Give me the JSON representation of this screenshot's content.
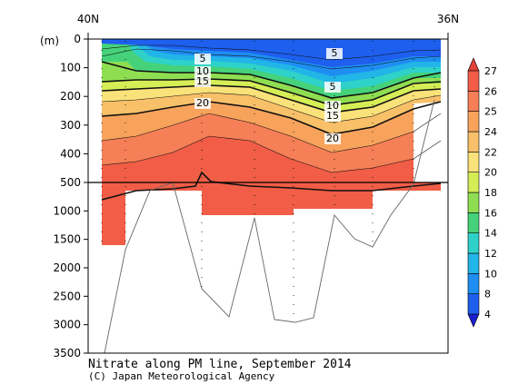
{
  "chart_data": {
    "type": "heatmap",
    "title": "Nitrate along PM line, September 2014",
    "credit": "(C) Japan Meteorological Agency",
    "x_labels": [
      "40N",
      "36N"
    ],
    "y_unit": "(m)",
    "y_ticks_upper": [
      0,
      100,
      200,
      300,
      400,
      500
    ],
    "y_ticks_lower": [
      1000,
      1500,
      2000,
      2500,
      3000,
      3500
    ],
    "ylim_upper": [
      0,
      500
    ],
    "ylim_lower": [
      500,
      3500
    ],
    "colorbar": {
      "levels": [
        4,
        8,
        10,
        12,
        14,
        16,
        18,
        20,
        22,
        24,
        25,
        26,
        27
      ],
      "colors": [
        "#1a20cc",
        "#1e5fee",
        "#1e8ef2",
        "#22b5e8",
        "#2fd2c9",
        "#45d27a",
        "#8fde52",
        "#d6ee56",
        "#fae27a",
        "#f8c069",
        "#f7a35c",
        "#f57f56",
        "#f15d46",
        "#e2423a"
      ]
    },
    "contour_labels": [
      {
        "text": "5"
      },
      {
        "text": "5"
      },
      {
        "text": "5"
      },
      {
        "text": "10"
      },
      {
        "text": "10"
      },
      {
        "text": "15"
      },
      {
        "text": "15"
      },
      {
        "text": "20"
      },
      {
        "text": "20"
      }
    ]
  }
}
